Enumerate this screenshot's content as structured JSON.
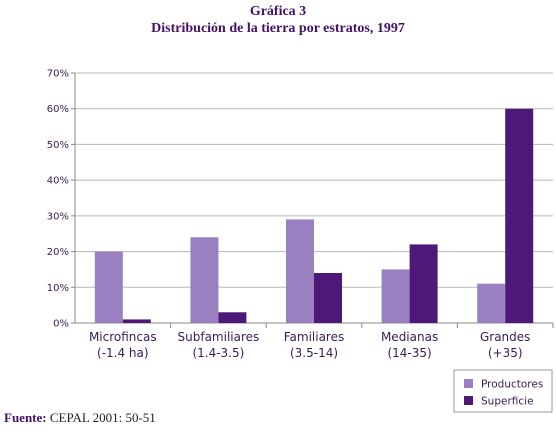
{
  "header": {
    "title": "Gráfica 3",
    "subtitle": "Distribución de la tierra por estratos, 1997"
  },
  "source": {
    "label": "Fuente:",
    "text": "CEPAL 2001: 50-51"
  },
  "chart_data": {
    "type": "bar",
    "categories": [
      [
        "Microfincas",
        "(-1.4 ha)"
      ],
      [
        "Subfamiliares",
        "(1.4-3.5)"
      ],
      [
        "Familiares",
        "(3.5-14)"
      ],
      [
        "Medianas",
        "(14-35)"
      ],
      [
        "Grandes",
        "(+35)"
      ]
    ],
    "series": [
      {
        "name": "Productores",
        "color": "#9a80c0",
        "values": [
          20,
          24,
          29,
          15,
          11
        ]
      },
      {
        "name": "Superficie",
        "color": "#4e1878",
        "values": [
          1,
          3,
          14,
          22,
          60
        ]
      }
    ],
    "ylim": [
      0,
      70
    ],
    "yticks": [
      0,
      10,
      20,
      30,
      40,
      50,
      60,
      70
    ],
    "ytick_labels": [
      "0%",
      "10%",
      "20%",
      "30%",
      "40%",
      "50%",
      "60%",
      "70%"
    ],
    "grid": true,
    "legend_position": "bottom-right",
    "title": "",
    "xlabel": "",
    "ylabel": ""
  }
}
